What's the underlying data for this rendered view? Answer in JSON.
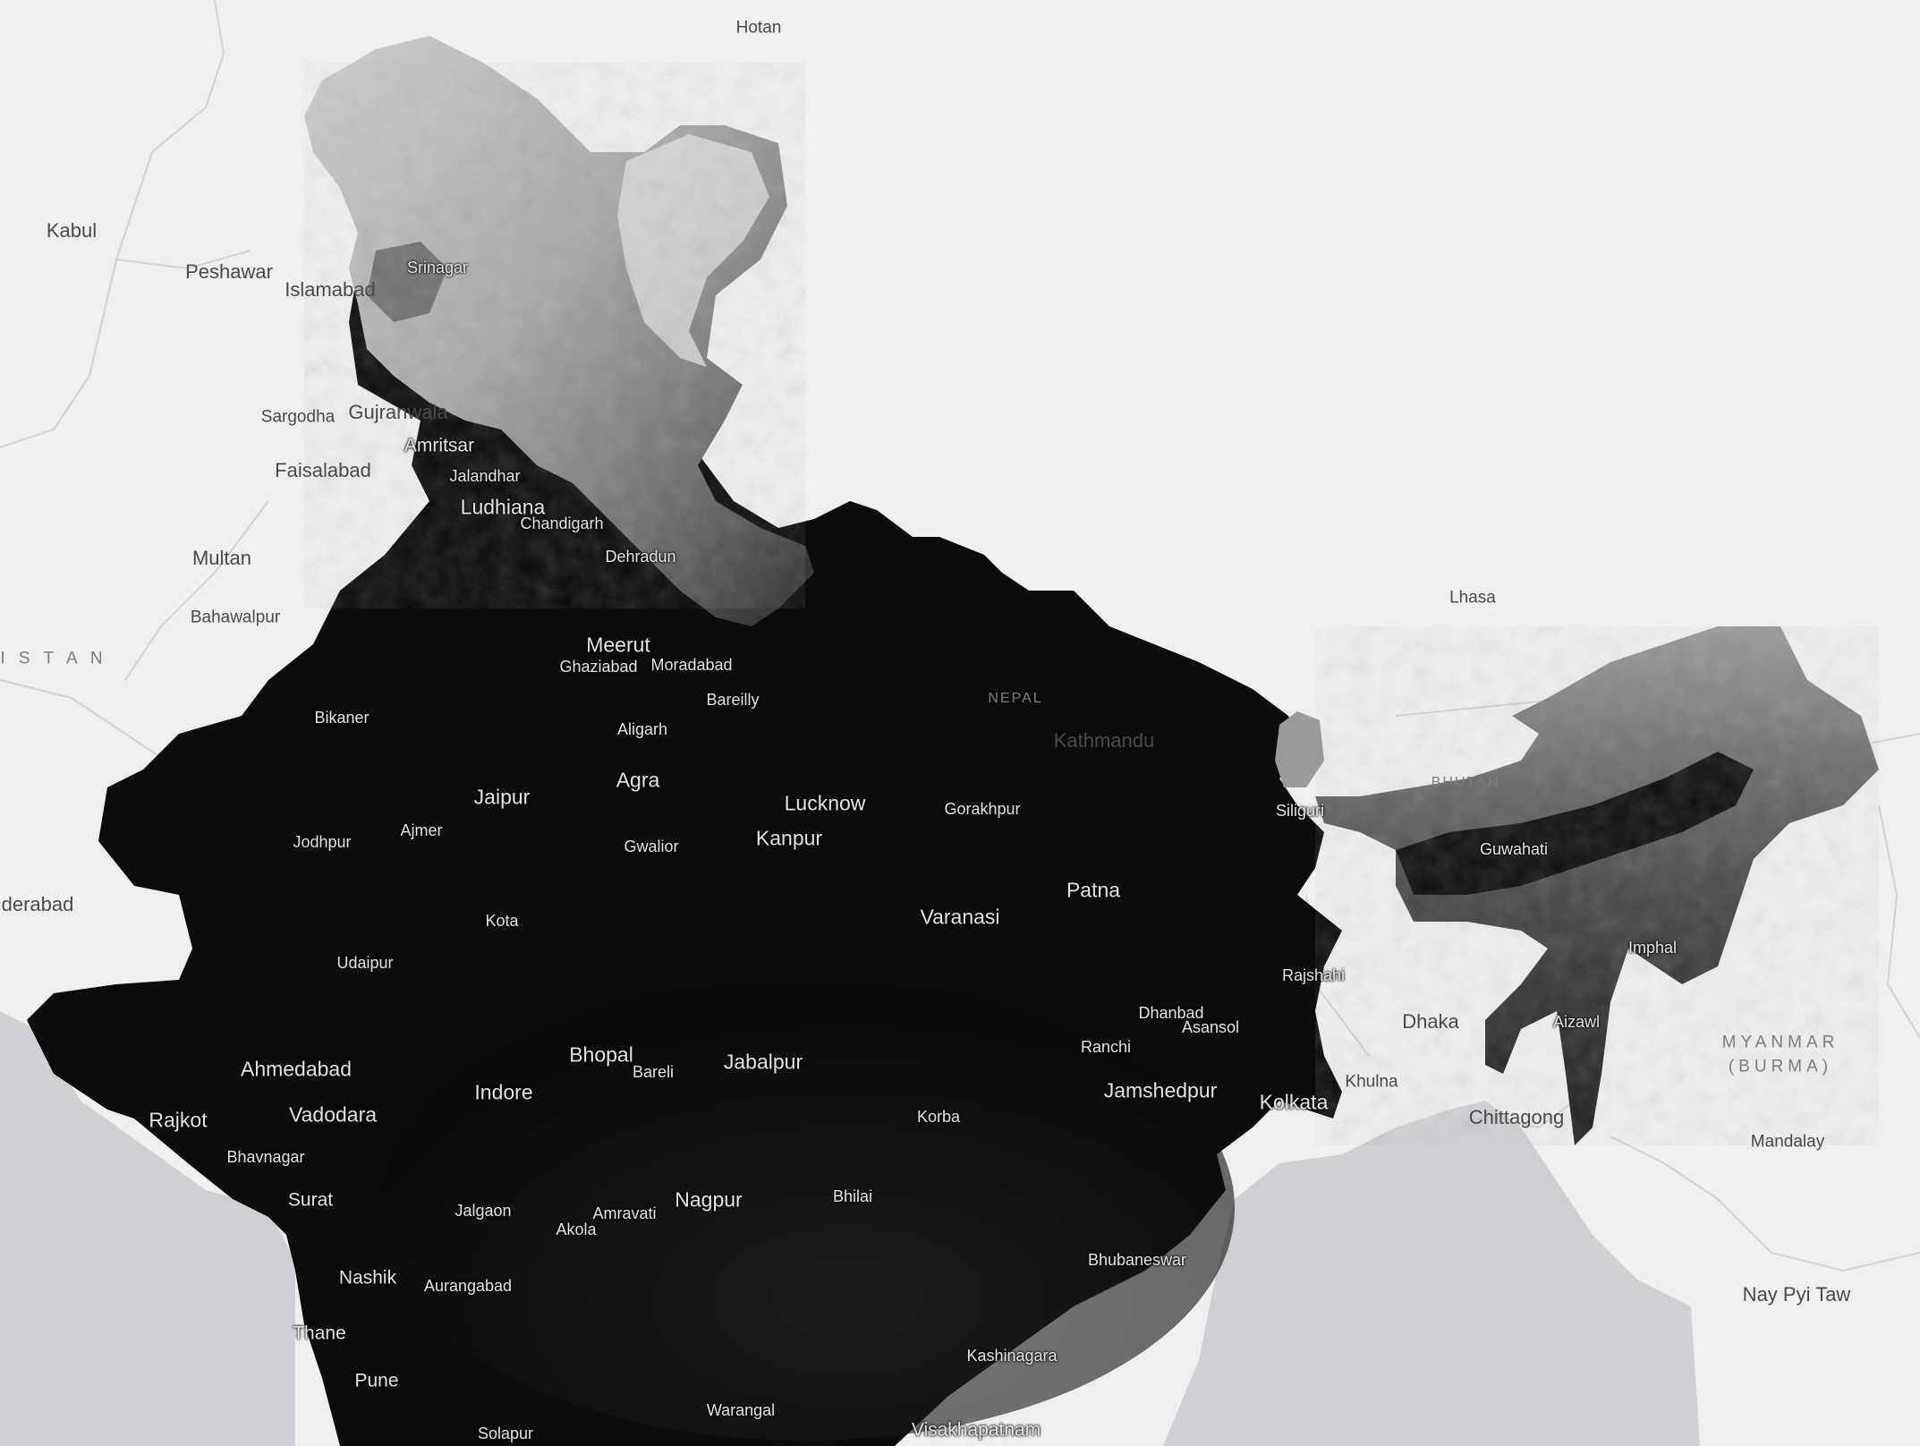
{
  "colors": {
    "background": "#efefef",
    "water": "#cfd0d6",
    "india_lowland": "#0b0b0b",
    "highland_light": "#e6e6e6",
    "outside_label": "#4a4a4a",
    "inside_label": "#e4e4e4",
    "country_label": "#7d7d7d"
  },
  "labels": {
    "countries": {
      "pakistan_partial": "I S T A N",
      "nepal": "NEPAL",
      "bhutan": "BHUTAN",
      "myanmar_line1": "MYANMAR",
      "myanmar_line2": "(BURMA)"
    },
    "outside_cities": {
      "hotan": "Hotan",
      "kabul": "Kabul",
      "peshawar": "Peshawar",
      "islamabad": "Islamabad",
      "sargodha": "Sargodha",
      "gujranwala": "Gujranwala",
      "faisalabad": "Faisalabad",
      "multan": "Multan",
      "bahawalpur": "Bahawalpur",
      "hyderabad_partial": "derabad",
      "lhasa": "Lhasa",
      "kathmandu": "Kathmandu",
      "dhaka": "Dhaka",
      "khulna": "Khulna",
      "chittagong": "Chittagong",
      "mandalay": "Mandalay",
      "nay_pyi_taw": "Nay Pyi Taw"
    },
    "india_cities": {
      "srinagar": "Srinagar",
      "amritsar": "Amritsar",
      "jalandhar": "Jalandhar",
      "ludhiana": "Ludhiana",
      "chandigarh": "Chandigarh",
      "dehradun": "Dehradun",
      "meerut": "Meerut",
      "ghaziabad": "Ghaziabad",
      "moradabad": "Moradabad",
      "bareilly": "Bareilly",
      "aligarh": "Aligarh",
      "bikaner": "Bikaner",
      "agra": "Agra",
      "jaipur": "Jaipur",
      "lucknow": "Lucknow",
      "gorakhpur": "Gorakhpur",
      "jodhpur": "Jodhpur",
      "ajmer": "Ajmer",
      "gwalior": "Gwalior",
      "kanpur": "Kanpur",
      "patna": "Patna",
      "varanasi": "Varanasi",
      "kota": "Kota",
      "udaipur": "Udaipur",
      "siliguri": "Siliguri",
      "guwahati": "Guwahati",
      "imphal": "Imphal",
      "rajshahi": "Rajshahi",
      "dhanbad": "Dhanbad",
      "asansol": "Asansol",
      "ranchi": "Ranchi",
      "aizawl": "Aizawl",
      "ahmedabad": "Ahmedabad",
      "bhopal": "Bhopal",
      "bareli": "Bareli",
      "jabalpur": "Jabalpur",
      "indore": "Indore",
      "jamshedpur": "Jamshedpur",
      "kolkata": "Kolkata",
      "rajkot": "Rajkot",
      "vadodara": "Vadodara",
      "korba": "Korba",
      "bhavnagar": "Bhavnagar",
      "surat": "Surat",
      "bhilai": "Bhilai",
      "nagpur": "Nagpur",
      "jalgaon": "Jalgaon",
      "amravati": "Amravati",
      "akola": "Akola",
      "nashik": "Nashik",
      "aurangabad": "Aurangabad",
      "bhubaneswar": "Bhubaneswar",
      "thane": "Thane",
      "kashinagara": "Kashinagara",
      "pune": "Pune",
      "warangal": "Warangal",
      "solapur": "Solapur",
      "visakhapatnam": "Visakhapatnam"
    }
  }
}
